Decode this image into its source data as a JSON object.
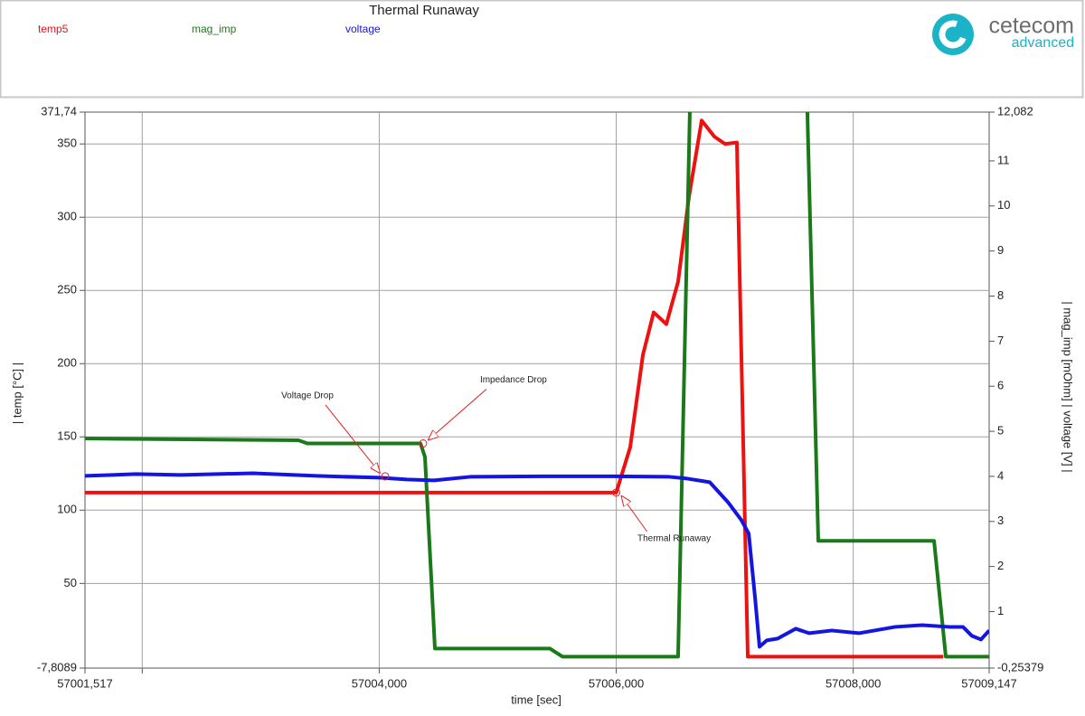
{
  "chart_data": {
    "type": "line",
    "title": "Thermal Runaway",
    "x_label": "time [sec]",
    "y_label": "| temp [°C] |",
    "y2_label": "| mag_imp [mOhm] | voltage [V] |",
    "xlim": [
      57001.517,
      57009.147
    ],
    "xticks": [
      {
        "value": 57001.517,
        "label": "57001,517"
      },
      {
        "value": 57002,
        "label": null
      },
      {
        "value": 57004,
        "label": "57004,000"
      },
      {
        "value": 57006,
        "label": "57006,000"
      },
      {
        "value": 57008,
        "label": "57008,000"
      },
      {
        "value": 57009.147,
        "label": "57009,147"
      }
    ],
    "ylim": [
      -7.8089,
      371.74
    ],
    "yticks": [
      {
        "value": 371.74,
        "label": "371,74"
      },
      350,
      300,
      250,
      200,
      150,
      100,
      50,
      {
        "value": -7.8089,
        "label": "-7,8089"
      }
    ],
    "y2lim": [
      -0.25379,
      12.082
    ],
    "y2ticks": [
      {
        "value": 12.082,
        "label": "12,082"
      },
      11,
      10,
      9,
      8,
      7,
      6,
      5,
      4,
      3,
      2,
      1,
      {
        "value": -0.25379,
        "label": "-0,25379"
      }
    ],
    "grid": true,
    "series": [
      {
        "name": "temp5",
        "color": "#ee1111",
        "axis": "y",
        "x": [
          57001.517,
          57006.0,
          57006.118,
          57006.225,
          57006.316,
          57006.423,
          57006.522,
          57006.614,
          57006.721,
          57006.828,
          57006.919,
          57007.018,
          57007.11,
          57008.76
        ],
        "values": [
          112,
          112,
          143,
          206,
          235,
          227,
          256,
          314,
          366,
          355,
          350,
          351,
          0,
          0
        ]
      },
      {
        "name": "mag_imp",
        "color": "#1a7a1a",
        "axis": "y2",
        "x": [
          57001.517,
          57003.318,
          57003.394,
          57004.348,
          57004.386,
          57004.47,
          57005.439,
          57005.546,
          57006.522,
          57006.621,
          57007.0,
          57007.613,
          57007.705,
          57008.682,
          57008.781,
          57009.147
        ],
        "values": [
          4.84,
          4.8,
          4.73,
          4.73,
          4.43,
          0.18,
          0.18,
          0,
          0,
          12.082,
          null,
          12.082,
          2.57,
          2.57,
          0,
          0
        ]
      },
      {
        "name": "voltage",
        "color": "#1515e0",
        "axis": "y2",
        "x": [
          57001.517,
          57001.944,
          57002.326,
          57002.936,
          57003.47,
          57004.004,
          57004.233,
          57004.462,
          57004.767,
          57005.378,
          57005.988,
          57006.446,
          57006.599,
          57006.789,
          57006.942,
          57007.056,
          57007.118,
          57007.171,
          57007.209,
          57007.27,
          57007.362,
          57007.514,
          57007.629,
          57007.819,
          57008.048,
          57008.354,
          57008.582,
          57008.811,
          57008.926,
          57009.002,
          57009.078,
          57009.147
        ],
        "values": [
          4.01,
          4.05,
          4.03,
          4.07,
          4.01,
          3.97,
          3.93,
          3.91,
          3.99,
          4.0,
          4.0,
          3.99,
          3.95,
          3.87,
          3.43,
          3.03,
          2.73,
          1.32,
          0.22,
          0.36,
          0.4,
          0.62,
          0.52,
          0.58,
          0.52,
          0.66,
          0.7,
          0.66,
          0.66,
          0.46,
          0.38,
          0.58
        ]
      }
    ],
    "annotations": [
      {
        "text": "Voltage Drop",
        "x": 57004.05,
        "y": 4.0,
        "axis": "y2"
      },
      {
        "text": "Impedance Drop",
        "x": 57004.37,
        "y": 4.73,
        "axis": "y2"
      },
      {
        "text": "Thermal Runaway",
        "x": 57006.0,
        "y": 112,
        "axis": "y"
      }
    ]
  },
  "branding": {
    "name": "cetecom",
    "subtitle": "advanced"
  }
}
